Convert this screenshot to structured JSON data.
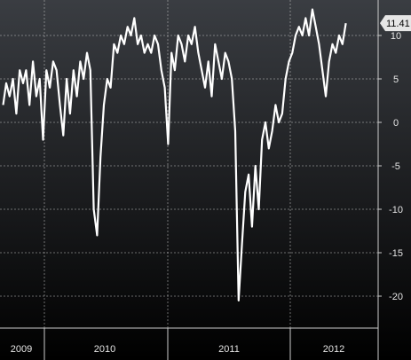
{
  "chart_data": {
    "type": "line",
    "title": "",
    "xlabel": "",
    "ylabel": "",
    "ylim": [
      -22.5,
      15.5
    ],
    "y_ticks": [
      "10",
      "5",
      "0",
      "-5",
      "-10",
      "-15",
      "-20"
    ],
    "x_tick_labels": [
      "2009",
      "2010",
      "2011",
      "2012"
    ],
    "grid": true,
    "last_value_label": "11.41",
    "colors": {
      "background_top": "#3a3d42",
      "background_bottom": "#000000",
      "line": "#ffffff",
      "grid": "#bfbfbf",
      "callout": "#e6e6e6"
    },
    "series": [
      {
        "x": [
          "2009-09-01",
          "2009-09-10",
          "2009-09-20",
          "2009-09-30",
          "2009-10-10",
          "2009-10-20",
          "2009-10-30",
          "2009-11-08",
          "2009-11-18",
          "2009-11-28",
          "2009-12-08",
          "2009-12-18",
          "2009-12-28",
          "2010-01-07",
          "2010-01-17",
          "2010-01-27",
          "2010-02-06",
          "2010-02-16",
          "2010-02-26",
          "2010-03-08",
          "2010-03-18",
          "2010-03-28",
          "2010-04-07",
          "2010-04-17",
          "2010-04-27",
          "2010-05-07",
          "2010-05-17",
          "2010-05-27",
          "2010-06-06",
          "2010-06-16",
          "2010-06-26",
          "2010-07-06",
          "2010-07-16",
          "2010-07-26",
          "2010-08-05",
          "2010-08-15",
          "2010-08-25",
          "2010-09-04",
          "2010-09-14",
          "2010-09-24",
          "2010-10-04",
          "2010-10-14",
          "2010-10-24",
          "2010-11-03",
          "2010-11-13",
          "2010-11-23",
          "2010-12-03",
          "2010-12-13",
          "2010-12-23",
          "2011-01-02",
          "2011-01-12",
          "2011-01-22",
          "2011-02-01",
          "2011-02-11",
          "2011-02-21",
          "2011-03-03",
          "2011-03-13",
          "2011-03-23",
          "2011-04-02",
          "2011-04-12",
          "2011-04-22",
          "2011-05-02",
          "2011-05-12",
          "2011-05-22",
          "2011-06-01",
          "2011-06-11",
          "2011-06-21",
          "2011-07-01",
          "2011-07-11",
          "2011-07-21",
          "2011-07-31",
          "2011-08-10",
          "2011-08-20",
          "2011-08-30",
          "2011-09-09",
          "2011-09-19",
          "2011-09-29",
          "2011-10-09",
          "2011-10-19",
          "2011-10-29",
          "2011-11-08",
          "2011-11-18",
          "2011-11-28",
          "2011-12-08",
          "2011-12-18",
          "2011-12-28",
          "2012-01-07",
          "2012-01-17",
          "2012-01-27",
          "2012-02-06",
          "2012-02-16",
          "2012-02-26",
          "2012-03-07",
          "2012-03-17",
          "2012-03-27",
          "2012-04-06",
          "2012-04-16",
          "2012-04-26",
          "2012-05-06",
          "2012-05-16",
          "2012-05-26",
          "2012-06-05",
          "2012-06-15"
        ],
        "values": [
          2,
          4.5,
          3,
          5,
          1,
          6,
          4.5,
          6,
          2,
          7,
          3,
          5,
          -2,
          6,
          4,
          7,
          6,
          2,
          -1.5,
          5,
          1,
          6,
          3,
          7,
          5,
          8,
          6,
          -10,
          -13,
          -4,
          2,
          5,
          4,
          9,
          8,
          10,
          9,
          11,
          10,
          12,
          9,
          10,
          8,
          9,
          8,
          10,
          9,
          6,
          4,
          -2.5,
          8,
          6,
          10,
          9,
          7,
          10,
          9,
          11,
          8,
          6,
          4,
          7,
          3,
          9,
          7,
          5,
          8,
          7,
          5,
          -1,
          -20.5,
          -14,
          -8,
          -6,
          -12,
          -5,
          -10,
          -2,
          0,
          -3,
          -1,
          2,
          0,
          1,
          5,
          7,
          8,
          10,
          11,
          10,
          12,
          10,
          13,
          11,
          9,
          6,
          3,
          7,
          9,
          8,
          10,
          9,
          11.41
        ]
      }
    ]
  }
}
